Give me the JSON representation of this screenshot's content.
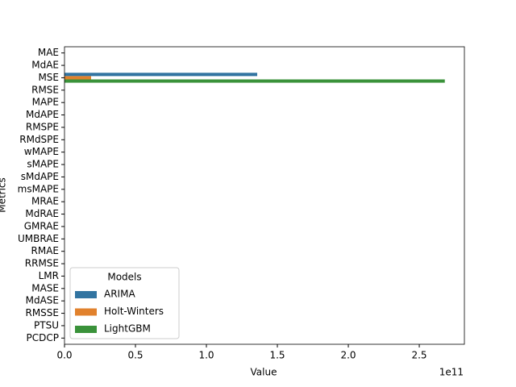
{
  "chart_data": {
    "type": "barh",
    "categories": [
      "MAE",
      "MdAE",
      "MSE",
      "RMSE",
      "MAPE",
      "MdAPE",
      "RMSPE",
      "RMdSPE",
      "wMAPE",
      "sMAPE",
      "sMdAPE",
      "msMAPE",
      "MRAE",
      "MdRAE",
      "GMRAE",
      "UMBRAE",
      "RMAE",
      "RRMSE",
      "LMR",
      "MASE",
      "MdASE",
      "RMSSE",
      "PTSU",
      "PCDCP"
    ],
    "series": [
      {
        "name": "ARIMA",
        "color": "#3274a1",
        "values": [
          0,
          0,
          135800000000,
          0,
          0,
          0,
          0,
          0,
          0,
          0,
          0,
          0,
          0,
          0,
          0,
          0,
          0,
          0,
          0,
          0,
          0,
          0,
          0,
          0
        ]
      },
      {
        "name": "Holt-Winters",
        "color": "#e1812c",
        "values": [
          0,
          0,
          18750000000,
          0,
          0,
          0,
          0,
          0,
          0,
          0,
          0,
          0,
          0,
          0,
          0,
          0,
          0,
          0,
          0,
          0,
          0,
          0,
          0,
          0
        ]
      },
      {
        "name": "LightGBM",
        "color": "#3a923a",
        "values": [
          0,
          0,
          268000000000,
          0,
          0,
          0,
          0,
          0,
          0,
          0,
          0,
          0,
          0,
          0,
          0,
          0,
          0,
          0,
          0,
          0,
          0,
          0,
          0,
          0
        ]
      }
    ],
    "xlabel": "Value",
    "ylabel": "Metrics",
    "x_offset_label": "1e11",
    "legend_title": "Models",
    "legend_loc": "lower left",
    "xlim": [
      0,
      281800000000
    ],
    "xticks": [
      {
        "value": 0,
        "label": "0.0"
      },
      {
        "value": 50000000000,
        "label": "0.5"
      },
      {
        "value": 100000000000,
        "label": "1.0"
      },
      {
        "value": 150000000000,
        "label": "1.5"
      },
      {
        "value": 200000000000,
        "label": "2.0"
      },
      {
        "value": 250000000000,
        "label": "2.5"
      }
    ]
  }
}
